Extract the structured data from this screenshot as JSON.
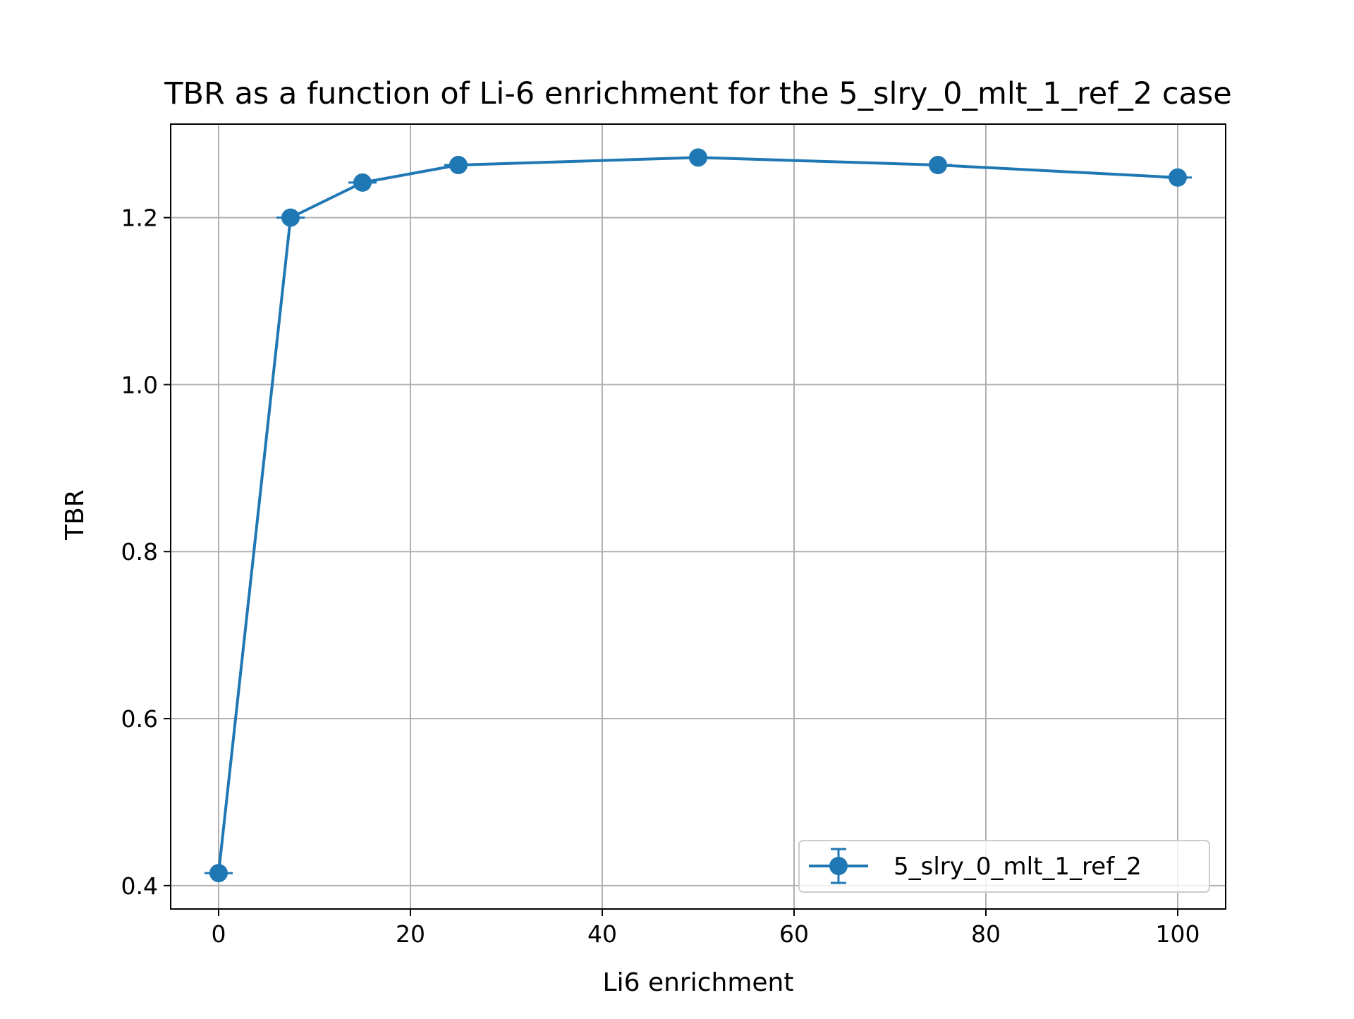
{
  "chart_data": {
    "type": "line",
    "title": "TBR as a function of Li-6 enrichment for the 5_slry_0_mlt_1_ref_2 case",
    "xlabel": "Li6 enrichment",
    "ylabel": "TBR",
    "xlim": [
      -5,
      105
    ],
    "ylim": [
      0.372,
      1.312
    ],
    "xticks": [
      0,
      20,
      40,
      60,
      80,
      100
    ],
    "xtick_labels": [
      "0",
      "20",
      "40",
      "60",
      "80",
      "100"
    ],
    "yticks": [
      0.4,
      0.6,
      0.8,
      1.0,
      1.2
    ],
    "ytick_labels": [
      "0.4",
      "0.6",
      "0.8",
      "1.0",
      "1.2"
    ],
    "grid": true,
    "legend_position": "lower-right",
    "series": [
      {
        "name": "5_slry_0_mlt_1_ref_2",
        "color": "#1f77b4",
        "marker": "circle",
        "error_bars": true,
        "x": [
          0,
          7.5,
          15,
          25,
          50,
          75,
          100
        ],
        "y": [
          0.415,
          1.2,
          1.242,
          1.263,
          1.272,
          1.263,
          1.248
        ]
      }
    ]
  }
}
